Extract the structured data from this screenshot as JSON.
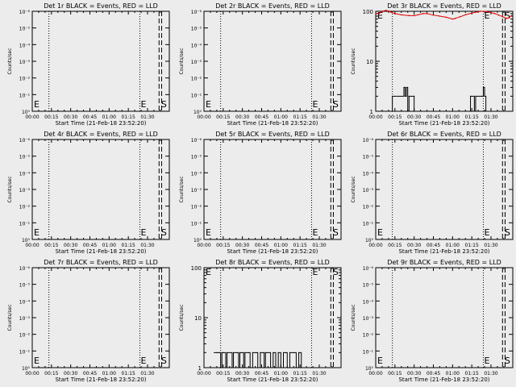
{
  "colors": {
    "background": "#ececec",
    "axes": "#000000",
    "events": "#000000",
    "lld": "#e00000"
  },
  "chart_data": [
    {
      "type": "line",
      "title": "Det 1r BLACK = Events, RED = LLD",
      "xlabel": "Start Time (21-Feb-18 23:52:20)",
      "ylabel": "Counts/sec",
      "xticks": [
        "00:00",
        "00:15",
        "00:30",
        "00:45",
        "01:00",
        "01:15",
        "01:30"
      ],
      "scale": "1e-6",
      "yticks": [
        "10⁰",
        "10⁻¹",
        "10⁻²",
        "10⁻³",
        "10⁻⁴",
        "10⁻⁵",
        "10⁻⁶"
      ],
      "markers": [
        "E",
        "E",
        "S"
      ],
      "events": [],
      "lld": []
    },
    {
      "type": "line",
      "title": "Det 2r BLACK = Events, RED = LLD",
      "xlabel": "Start Time (21-Feb-18 23:52:20)",
      "ylabel": "Counts/sec",
      "xticks": [
        "00:00",
        "00:15",
        "00:30",
        "00:45",
        "01:00",
        "01:15",
        "01:30"
      ],
      "scale": "1e-6",
      "yticks": [
        "10⁰",
        "10⁻¹",
        "10⁻²",
        "10⁻³",
        "10⁻⁴",
        "10⁻⁵",
        "10⁻⁶"
      ],
      "markers": [
        "E",
        "E",
        "S"
      ],
      "events": [],
      "lld": []
    },
    {
      "type": "line",
      "title": "Det 3r BLACK = Events, RED = LLD",
      "xlabel": "Start Time (21-Feb-18 23:52:20)",
      "ylabel": "Counts/sec",
      "xticks": [
        "00:00",
        "00:15",
        "00:30",
        "00:45",
        "01:00",
        "01:15",
        "01:30"
      ],
      "scale": "log",
      "yticks": [
        "1",
        "10",
        "100"
      ],
      "markers": [
        "E",
        "E",
        "S"
      ],
      "events": [
        [
          13,
          1
        ],
        [
          13,
          2
        ],
        [
          22,
          2
        ],
        [
          22,
          3
        ],
        [
          23,
          2
        ],
        [
          24,
          3
        ],
        [
          25,
          1
        ],
        [
          26,
          2
        ],
        [
          30,
          2
        ],
        [
          30,
          1
        ],
        [
          73,
          1
        ],
        [
          74,
          2
        ],
        [
          77,
          1
        ],
        [
          78,
          2
        ],
        [
          83,
          2
        ],
        [
          84,
          3
        ],
        [
          85,
          2
        ],
        [
          86,
          1
        ]
      ],
      "lld": [
        [
          0,
          90
        ],
        [
          3,
          92
        ],
        [
          5,
          100
        ],
        [
          8,
          104
        ],
        [
          10,
          101
        ],
        [
          12,
          96
        ],
        [
          15,
          90
        ],
        [
          20,
          85
        ],
        [
          26,
          82
        ],
        [
          30,
          82
        ],
        [
          33,
          85
        ],
        [
          37,
          90
        ],
        [
          40,
          90
        ],
        [
          45,
          84
        ],
        [
          50,
          80
        ],
        [
          55,
          76
        ],
        [
          60,
          70
        ],
        [
          62,
          72
        ],
        [
          66,
          78
        ],
        [
          70,
          85
        ],
        [
          75,
          92
        ],
        [
          78,
          96
        ],
        [
          82,
          100
        ],
        [
          86,
          100
        ],
        [
          90,
          94
        ],
        [
          93,
          90
        ],
        [
          96,
          84
        ],
        [
          99,
          78
        ],
        [
          102,
          72
        ],
        [
          104,
          74
        ],
        [
          106,
          82
        ]
      ]
    },
    {
      "type": "line",
      "title": "Det 4r BLACK = Events, RED = LLD",
      "xlabel": "Start Time (21-Feb-18 23:52:20)",
      "ylabel": "Counts/sec",
      "xticks": [
        "00:00",
        "00:15",
        "00:30",
        "00:45",
        "01:00",
        "01:15",
        "01:30"
      ],
      "scale": "1e-6",
      "yticks": [
        "10⁰",
        "10⁻¹",
        "10⁻²",
        "10⁻³",
        "10⁻⁴",
        "10⁻⁵",
        "10⁻⁶"
      ],
      "markers": [
        "E",
        "E",
        "S"
      ],
      "events": [],
      "lld": []
    },
    {
      "type": "line",
      "title": "Det 5r BLACK = Events, RED = LLD",
      "xlabel": "Start Time (21-Feb-18 23:52:20)",
      "ylabel": "Counts/sec",
      "xticks": [
        "00:00",
        "00:15",
        "00:30",
        "00:45",
        "01:00",
        "01:15",
        "01:30"
      ],
      "scale": "1e-6",
      "yticks": [
        "10⁰",
        "10⁻¹",
        "10⁻²",
        "10⁻³",
        "10⁻⁴",
        "10⁻⁵",
        "10⁻⁶"
      ],
      "markers": [
        "E",
        "E",
        "S"
      ],
      "events": [],
      "lld": []
    },
    {
      "type": "line",
      "title": "Det 6r BLACK = Events, RED = LLD",
      "xlabel": "Start Time (21-Feb-18 23:52:20)",
      "ylabel": "Counts/sec",
      "xticks": [
        "00:00",
        "00:15",
        "00:30",
        "00:45",
        "01:00",
        "01:15",
        "01:30"
      ],
      "scale": "1e-6",
      "yticks": [
        "10⁰",
        "10⁻¹",
        "10⁻²",
        "10⁻³",
        "10⁻⁴",
        "10⁻⁵",
        "10⁻⁶"
      ],
      "markers": [
        "E",
        "E",
        "S"
      ],
      "events": [],
      "lld": []
    },
    {
      "type": "line",
      "title": "Det 7r BLACK = Events, RED = LLD",
      "xlabel": "Start Time (21-Feb-18 23:52:20)",
      "ylabel": "Counts/sec",
      "xticks": [
        "00:00",
        "00:15",
        "00:30",
        "00:45",
        "01:00",
        "01:15",
        "01:30"
      ],
      "scale": "1e-6",
      "yticks": [
        "10⁰",
        "10⁻¹",
        "10⁻²",
        "10⁻³",
        "10⁻⁴",
        "10⁻⁵",
        "10⁻⁶"
      ],
      "markers": [
        "E",
        "E",
        "S"
      ],
      "events": [],
      "lld": []
    },
    {
      "type": "line",
      "title": "Det 8r BLACK = Events, RED = LLD",
      "xlabel": "Start Time (21-Feb-18 23:52:20)",
      "ylabel": "Counts/sec",
      "xticks": [
        "00:00",
        "00:15",
        "00:30",
        "00:45",
        "01:00",
        "01:15",
        "01:30"
      ],
      "scale": "log",
      "yticks": [
        "1",
        "10",
        "100"
      ],
      "markers": [
        "E",
        "E",
        "S"
      ],
      "events": [
        [
          8,
          2
        ],
        [
          10,
          2
        ],
        [
          12,
          2
        ],
        [
          13,
          1
        ],
        [
          14,
          2
        ],
        [
          15,
          2
        ],
        [
          17,
          1
        ],
        [
          18,
          2
        ],
        [
          22,
          1
        ],
        [
          23,
          2
        ],
        [
          26,
          2
        ],
        [
          27,
          1
        ],
        [
          28,
          2
        ],
        [
          30,
          2
        ],
        [
          31,
          1
        ],
        [
          32,
          2
        ],
        [
          35,
          2
        ],
        [
          36,
          1
        ],
        [
          38,
          2
        ],
        [
          41,
          2
        ],
        [
          42,
          1
        ],
        [
          44,
          2
        ],
        [
          47,
          1
        ],
        [
          48,
          2
        ],
        [
          52,
          1
        ],
        [
          54,
          2
        ],
        [
          56,
          1
        ],
        [
          58,
          2
        ],
        [
          60,
          1
        ],
        [
          62,
          2
        ],
        [
          64,
          2
        ],
        [
          65,
          1
        ],
        [
          67,
          2
        ],
        [
          70,
          2
        ],
        [
          72,
          1
        ],
        [
          74,
          2
        ],
        [
          76,
          1
        ]
      ],
      "lld": []
    },
    {
      "type": "line",
      "title": "Det 9r BLACK = Events, RED = LLD",
      "xlabel": "Start Time (21-Feb-18 23:52:20)",
      "ylabel": "Counts/sec",
      "xticks": [
        "00:00",
        "00:15",
        "00:30",
        "00:45",
        "01:00",
        "01:15",
        "01:30"
      ],
      "scale": "1e-6",
      "yticks": [
        "10⁰",
        "10⁻¹",
        "10⁻²",
        "10⁻³",
        "10⁻⁴",
        "10⁻⁵",
        "10⁻⁶"
      ],
      "markers": [
        "E",
        "E",
        "S"
      ],
      "events": [],
      "lld": []
    }
  ]
}
